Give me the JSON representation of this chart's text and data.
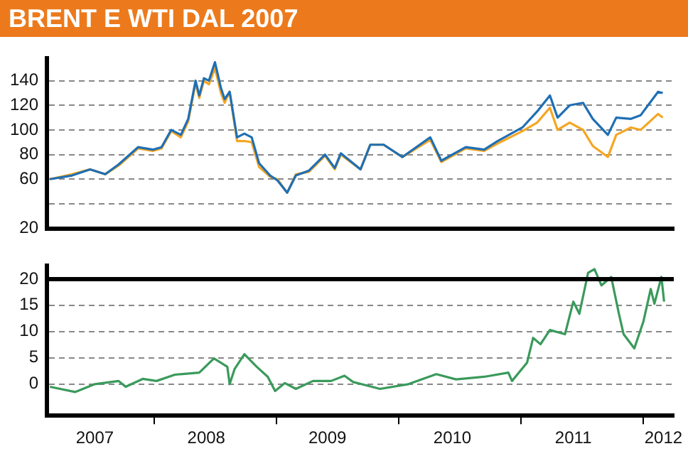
{
  "chart_data": [
    {
      "type": "line",
      "title": "BRENT E WTI DAL 2007",
      "x": [
        "2007-02-24",
        "2007-05-01",
        "2007-06-24",
        "2007-08-08",
        "2007-09-17",
        "2007-11-14",
        "2007-12-28",
        "2008-01-23",
        "2008-02-21",
        "2008-03-21",
        "2008-04-12",
        "2008-05-04",
        "2008-05-15",
        "2008-05-29",
        "2008-06-13",
        "2008-07-01",
        "2008-07-19",
        "2008-07-30",
        "2008-08-14",
        "2008-09-05",
        "2008-09-27",
        "2008-10-19",
        "2008-11-10",
        "2008-12-13",
        "2009-01-04",
        "2009-02-02",
        "2009-02-28",
        "2009-04-08",
        "2009-05-26",
        "2009-06-24",
        "2009-07-12",
        "2009-09-09",
        "2009-10-08",
        "2009-11-17",
        "2010-01-12",
        "2010-04-05",
        "2010-05-08",
        "2010-07-20",
        "2010-09-13",
        "2010-10-23",
        "2011-01-05",
        "2011-02-18",
        "2011-03-28",
        "2011-04-20",
        "2011-05-26",
        "2011-07-05",
        "2011-08-03",
        "2011-09-17",
        "2011-10-12",
        "2011-11-25",
        "2011-12-24",
        "2012-02-14",
        "2012-02-28"
      ],
      "series": [
        {
          "color": "#1f6fb4",
          "values": [
            60,
            63,
            68,
            64,
            72,
            86,
            84,
            86,
            100,
            96,
            109,
            140,
            128,
            142,
            140,
            155,
            134,
            125,
            131,
            94,
            97,
            94,
            73,
            63,
            59,
            49,
            63,
            67,
            80,
            69,
            81,
            68,
            88,
            88,
            78,
            94,
            75,
            86,
            84,
            91,
            102,
            115,
            128,
            110,
            120,
            122,
            109,
            96,
            110,
            109,
            112,
            131,
            130
          ]
        },
        {
          "color": "#f5a623",
          "values": [
            60,
            64,
            68,
            64,
            71,
            85,
            83,
            85,
            99,
            94,
            107,
            138,
            126,
            140,
            137,
            150,
            130,
            122,
            131,
            91,
            91,
            90,
            70,
            62,
            60,
            49,
            64,
            66,
            79,
            68,
            80,
            68,
            88,
            88,
            78,
            92,
            74,
            85,
            83,
            89,
            99,
            106,
            118,
            100,
            106,
            100,
            87,
            78,
            96,
            102,
            100,
            113,
            110
          ]
        }
      ],
      "xlim": [
        "2007-02-15",
        "2012-04-01"
      ],
      "ylim": [
        20,
        158
      ],
      "yticks": [
        20,
        {
          "value": 40,
          "label": null
        },
        60,
        80,
        100,
        120,
        140
      ],
      "tick_labels": "y",
      "grid": "y",
      "line_style": "solid",
      "marker": "none"
    },
    {
      "type": "line",
      "x": [
        "2007-02-24",
        "2007-05-10",
        "2007-07-08",
        "2007-09-17",
        "2007-10-08",
        "2007-11-28",
        "2008-01-08",
        "2008-03-03",
        "2008-05-15",
        "2008-06-28",
        "2008-08-07",
        "2008-08-14",
        "2008-08-29",
        "2008-09-27",
        "2008-11-03",
        "2008-12-06",
        "2008-12-28",
        "2009-01-26",
        "2009-02-28",
        "2009-04-20",
        "2009-06-13",
        "2009-07-23",
        "2009-08-18",
        "2009-11-06",
        "2010-01-30",
        "2010-04-23",
        "2010-06-21",
        "2010-09-13",
        "2010-11-24",
        "2010-12-05",
        "2011-01-19",
        "2011-02-06",
        "2011-02-28",
        "2011-03-28",
        "2011-05-12",
        "2011-06-06",
        "2011-06-24",
        "2011-07-20",
        "2011-08-08",
        "2011-08-29",
        "2011-09-27",
        "2011-10-20",
        "2011-11-03",
        "2011-12-05",
        "2012-01-01",
        "2012-01-23",
        "2012-02-03",
        "2012-02-24",
        "2012-03-03"
      ],
      "values": [
        -0.5,
        -1.5,
        0,
        0.6,
        -0.5,
        1,
        0.6,
        1.8,
        2.2,
        4.9,
        3.3,
        0,
        2.9,
        5.7,
        3.3,
        1.4,
        -1.3,
        0.2,
        -0.9,
        0.6,
        0.6,
        1.6,
        0.4,
        -0.9,
        0,
        1.9,
        0.9,
        1.4,
        2.2,
        0.6,
        4.1,
        8.8,
        7.6,
        10.3,
        9.5,
        15.7,
        13.4,
        21.2,
        21.9,
        18.8,
        20.4,
        13.4,
        9.5,
        6.8,
        11.9,
        18.1,
        15.3,
        20.4,
        15.7
      ],
      "color": "#3a9a5b",
      "xlim": [
        "2007-02-15",
        "2012-04-01"
      ],
      "xticks": [
        {
          "value": "2007-07-08",
          "label": "2007"
        },
        {
          "value": "2008-01-01",
          "label": null
        },
        {
          "value": "2008-06-05",
          "label": "2008"
        },
        {
          "value": "2009-01-01",
          "label": null
        },
        {
          "value": "2009-06-02",
          "label": "2009"
        },
        {
          "value": "2010-01-01",
          "label": null
        },
        {
          "value": "2010-06-10",
          "label": "2010"
        },
        {
          "value": "2011-01-01",
          "label": null
        },
        {
          "value": "2011-06-06",
          "label": "2011"
        },
        {
          "value": "2012-01-01",
          "label": null
        },
        {
          "value": "2012-03-01",
          "label": "2012"
        }
      ],
      "ylim": [
        -6,
        22.5
      ],
      "yticks": [
        0,
        5,
        10,
        15,
        20
      ],
      "ref_lines": [
        {
          "axis": "y",
          "value": 20,
          "color": "#000000",
          "line_style": "solid"
        }
      ],
      "grid": "y",
      "line_style": "solid",
      "marker": "none"
    }
  ]
}
